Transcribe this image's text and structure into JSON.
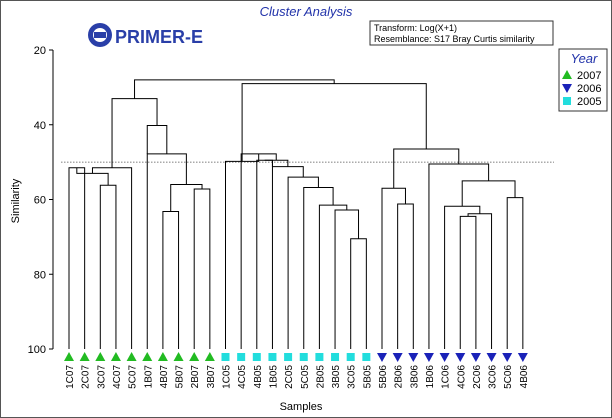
{
  "chart_data": {
    "type": "dendrogram",
    "title": "Cluster Analysis",
    "logo_text": "PRIMER-E",
    "xlabel": "Samples",
    "ylabel": "Similarity",
    "ylim": [
      20,
      100
    ],
    "yticks": [
      20,
      40,
      60,
      80,
      100
    ],
    "reference_line": 50,
    "info_box": [
      "Transform: Log(X+1)",
      "Resemblance: S17 Bray Curtis similarity"
    ],
    "legend": {
      "title": "Year",
      "placement": "top-right",
      "entries": [
        {
          "label": "2007",
          "marker": "triangle-up",
          "color": "#22bb22"
        },
        {
          "label": "2006",
          "marker": "triangle-down",
          "color": "#1a22b8"
        },
        {
          "label": "2005",
          "marker": "square",
          "color": "#22dddd"
        }
      ]
    },
    "samples": [
      {
        "label": "1C07",
        "year": "2007"
      },
      {
        "label": "2C07",
        "year": "2007"
      },
      {
        "label": "3C07",
        "year": "2007"
      },
      {
        "label": "4C07",
        "year": "2007"
      },
      {
        "label": "5C07",
        "year": "2007"
      },
      {
        "label": "1B07",
        "year": "2007"
      },
      {
        "label": "4B07",
        "year": "2007"
      },
      {
        "label": "5B07",
        "year": "2007"
      },
      {
        "label": "2B07",
        "year": "2007"
      },
      {
        "label": "3B07",
        "year": "2007"
      },
      {
        "label": "1C05",
        "year": "2005"
      },
      {
        "label": "4C05",
        "year": "2005"
      },
      {
        "label": "4B05",
        "year": "2005"
      },
      {
        "label": "1B05",
        "year": "2005"
      },
      {
        "label": "2C05",
        "year": "2005"
      },
      {
        "label": "5C05",
        "year": "2005"
      },
      {
        "label": "2B05",
        "year": "2005"
      },
      {
        "label": "3B05",
        "year": "2005"
      },
      {
        "label": "3C05",
        "year": "2005"
      },
      {
        "label": "5B05",
        "year": "2005"
      },
      {
        "label": "5B06",
        "year": "2006"
      },
      {
        "label": "2B06",
        "year": "2006"
      },
      {
        "label": "3B06",
        "year": "2006"
      },
      {
        "label": "1B06",
        "year": "2006"
      },
      {
        "label": "1C06",
        "year": "2006"
      },
      {
        "label": "4C06",
        "year": "2006"
      },
      {
        "label": "2C06",
        "year": "2006"
      },
      {
        "label": "3C06",
        "year": "2006"
      },
      {
        "label": "5C06",
        "year": "2006"
      },
      {
        "label": "4B06",
        "year": "2006"
      }
    ],
    "merges": [
      {
        "a": "1C07",
        "b": "2C07",
        "id": "c1",
        "sim": 51.5
      },
      {
        "a": "3C07",
        "b": "4C07",
        "id": "c2",
        "sim": 56.2
      },
      {
        "a": "c1",
        "b": "c2",
        "id": "c3",
        "sim": 53
      },
      {
        "a": "c3",
        "b": "5C07",
        "id": "c4",
        "sim": 51.5
      },
      {
        "a": "4B07",
        "b": "5B07",
        "id": "c5",
        "sim": 63.2
      },
      {
        "a": "2B07",
        "b": "3B07",
        "id": "c6",
        "sim": 57.2
      },
      {
        "a": "c5",
        "b": "c6",
        "id": "c7",
        "sim": 56
      },
      {
        "a": "c7",
        "b": "1B07",
        "id": "c8",
        "sim": 47.8
      },
      {
        "a": "c8",
        "b": "1B07x",
        "id": "c9",
        "sim": 40.2
      },
      {
        "a": "c4",
        "b": "c9",
        "id": "c10",
        "sim": 33
      },
      {
        "a": "4B05",
        "b": "1B05",
        "id": "d1",
        "sim": 49.5
      },
      {
        "a": "3C05",
        "b": "5B05",
        "id": "d2",
        "sim": 70.5
      },
      {
        "a": "3B05",
        "b": "d2",
        "id": "d3",
        "sim": 62.8
      },
      {
        "a": "2B05",
        "b": "d3",
        "id": "d4",
        "sim": 61.5
      },
      {
        "a": "5C05",
        "b": "d4",
        "id": "d5",
        "sim": 56.8
      },
      {
        "a": "2C05",
        "b": "d5",
        "id": "d6",
        "sim": 54
      },
      {
        "a": "d6",
        "b": "1B05g",
        "id": "d7",
        "sim": 51.2
      },
      {
        "a": "d1",
        "b": "d7",
        "id": "d8",
        "sim": 49.5
      },
      {
        "a": "4C05",
        "b": "d8",
        "id": "d9",
        "sim": 47.8
      },
      {
        "a": "1C05",
        "b": "d9",
        "id": "d10",
        "sim": 49.8
      },
      {
        "a": "2B06",
        "b": "3B06",
        "id": "e1",
        "sim": 61.2
      },
      {
        "a": "5B06",
        "b": "e1",
        "id": "e2",
        "sim": 57
      },
      {
        "a": "4C06",
        "b": "2C06",
        "id": "e3",
        "sim": 64.5
      },
      {
        "a": "3C06",
        "b": "e3",
        "id": "e4",
        "sim": 63.8
      },
      {
        "a": "1C06",
        "b": "e4",
        "id": "e5",
        "sim": 61.8
      },
      {
        "a": "5C06",
        "b": "4B06",
        "id": "e6",
        "sim": 59.5
      },
      {
        "a": "e5",
        "b": "e6",
        "id": "e7",
        "sim": 55
      },
      {
        "a": "1B06",
        "b": "e7",
        "id": "e8",
        "sim": 50.5
      },
      {
        "a": "e2",
        "b": "e8",
        "id": "e9",
        "sim": 46.5
      },
      {
        "a": "d10",
        "b": "e9",
        "id": "e10",
        "sim": 29
      },
      {
        "a": "c10",
        "b": "e10",
        "id": "root",
        "sim": 28
      }
    ]
  }
}
